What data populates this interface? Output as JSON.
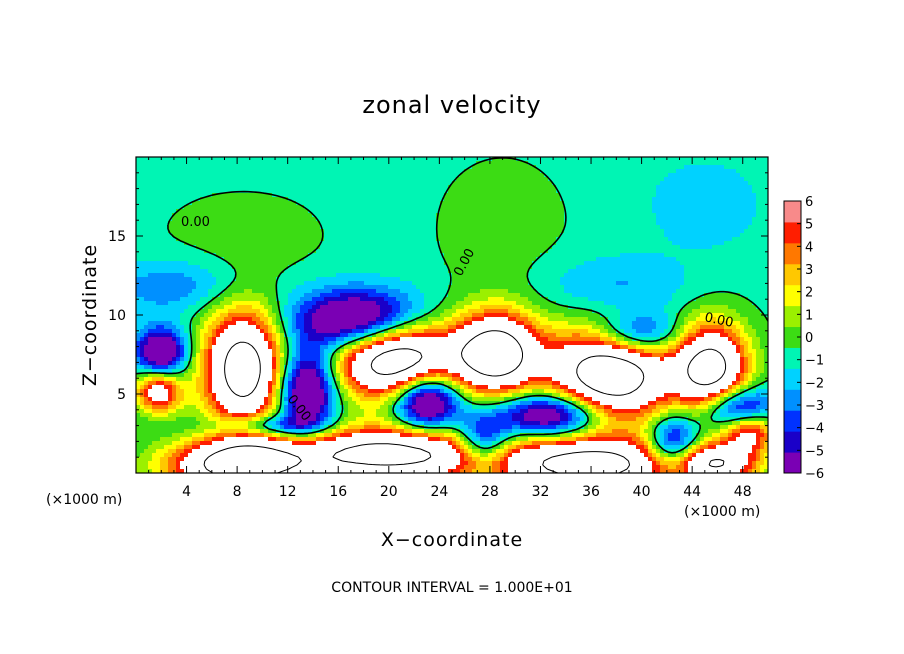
{
  "chart_data": {
    "type": "heatmap",
    "title": "zonal velocity",
    "xlabel": "X−coordinate",
    "ylabel": "Z−coordinate",
    "x_unit": "(×1000 m)",
    "z_unit": "(×1000 m)",
    "xlim": [
      0,
      50
    ],
    "ylim": [
      0,
      20
    ],
    "x_ticks": [
      4,
      8,
      12,
      16,
      20,
      24,
      28,
      32,
      36,
      40,
      44,
      48
    ],
    "y_ticks": [
      5,
      10,
      15
    ],
    "colorbar": {
      "min": -6,
      "max": 6,
      "ticks": [
        6,
        5,
        4,
        3,
        2,
        1,
        0,
        -1,
        -2,
        -3,
        -4,
        -5,
        -6
      ],
      "tick_labels": [
        "6",
        "5",
        "4",
        "3",
        "2",
        "1",
        "0",
        "−1",
        "−2",
        "−3",
        "−4",
        "−5",
        "−6"
      ],
      "colors": [
        "#7a00b4",
        "#1a00c8",
        "#0032ff",
        "#0090ff",
        "#00d2ff",
        "#00f5b4",
        "#3cdc14",
        "#9bf000",
        "#ffff00",
        "#ffc800",
        "#ff7800",
        "#ff1e00",
        "#f88a8a"
      ]
    },
    "contour_labels": [
      "0.00",
      "0.00",
      "0.00",
      "0.00"
    ],
    "blobs": [
      {
        "x": 20.5,
        "z": 7.4,
        "sx": 3.4,
        "sz": 1.8,
        "a": 15
      },
      {
        "x": 8.5,
        "z": 6.6,
        "sx": 2.2,
        "sz": 2.6,
        "a": 13
      },
      {
        "x": 28.5,
        "z": 7.6,
        "sx": 2.3,
        "sz": 1.8,
        "a": 13
      },
      {
        "x": 37.5,
        "z": 6.3,
        "sx": 3.4,
        "sz": 2.2,
        "a": 14
      },
      {
        "x": 45.5,
        "z": 6.6,
        "sx": 2.0,
        "sz": 2.0,
        "a": 12
      },
      {
        "x": 20.0,
        "z": 1.2,
        "sx": 6.0,
        "sz": 1.2,
        "a": 12
      },
      {
        "x": 8.0,
        "z": 0.5,
        "sx": 3.8,
        "sz": 1.1,
        "a": 12
      },
      {
        "x": 36.0,
        "z": 0.5,
        "sx": 5.0,
        "sz": 1.2,
        "a": 12
      },
      {
        "x": 1.8,
        "z": 5.2,
        "sx": 1.3,
        "sz": 1.0,
        "a": 8
      },
      {
        "x": 46.0,
        "z": 0.6,
        "sx": 2.3,
        "sz": 0.9,
        "a": 9
      },
      {
        "x": 48.5,
        "z": 2.7,
        "sx": 1.5,
        "sz": 0.9,
        "a": 8
      },
      {
        "x": 18.0,
        "z": 9.5,
        "sx": 3.6,
        "sz": 1.4,
        "a": -11
      },
      {
        "x": 23.0,
        "z": 4.6,
        "sx": 1.8,
        "sz": 1.3,
        "a": -10
      },
      {
        "x": 13.5,
        "z": 5.3,
        "sx": 1.6,
        "sz": 1.8,
        "a": -9
      },
      {
        "x": 33.0,
        "z": 3.7,
        "sx": 3.0,
        "sz": 1.0,
        "a": -9
      },
      {
        "x": 39.5,
        "z": 8.7,
        "sx": 2.5,
        "sz": 1.0,
        "a": -7
      },
      {
        "x": 27.5,
        "z": 1.9,
        "sx": 1.5,
        "sz": 1.2,
        "a": -7
      },
      {
        "x": 47.5,
        "z": 4.0,
        "sx": 2.0,
        "sz": 1.0,
        "a": -8
      },
      {
        "x": 42.5,
        "z": 1.8,
        "sx": 1.4,
        "sz": 1.3,
        "a": -7
      },
      {
        "x": 2.0,
        "z": 7.6,
        "sx": 1.4,
        "sz": 1.1,
        "a": -8
      },
      {
        "x": 10.5,
        "z": 3.0,
        "sx": 3.0,
        "sz": 0.5,
        "a": -5
      },
      {
        "x": 3.0,
        "z": 11.8,
        "sx": 4.0,
        "sz": 1.2,
        "a": -2.5
      },
      {
        "x": 38.0,
        "z": 11.5,
        "sx": 4.0,
        "sz": 1.5,
        "a": -2.3
      },
      {
        "x": 45.0,
        "z": 17.0,
        "sx": 3.2,
        "sz": 2.0,
        "a": -1.6
      },
      {
        "x": 29.0,
        "z": 15.5,
        "sx": 3.5,
        "sz": 3.0,
        "a": 0.9
      },
      {
        "x": 8.5,
        "z": 15.0,
        "sx": 4.5,
        "sz": 2.0,
        "a": 0.8
      }
    ],
    "background_level": -0.3
  },
  "footer": {
    "contour_interval": "CONTOUR INTERVAL = 1.000E+01"
  }
}
